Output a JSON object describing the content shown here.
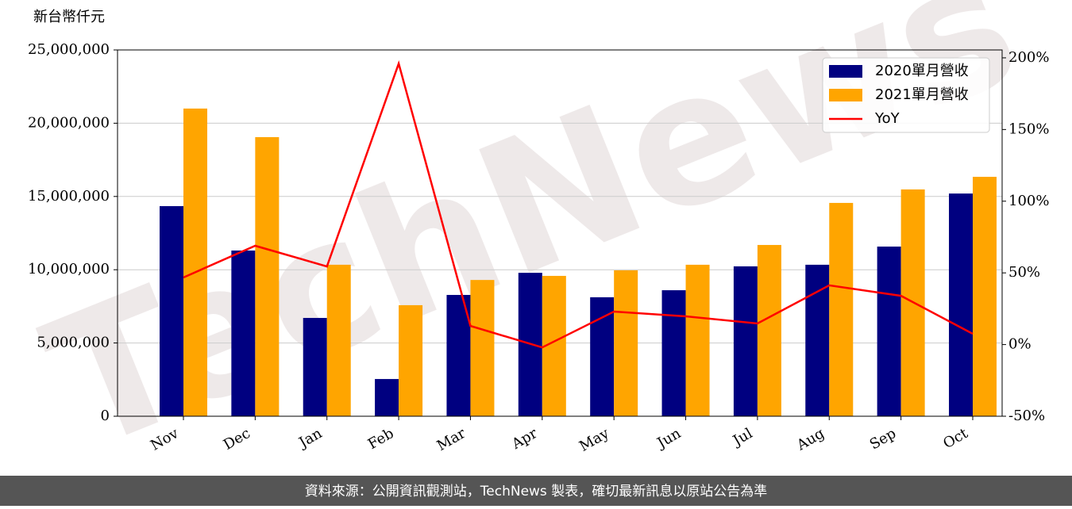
{
  "chart_data": {
    "type": "bar_line",
    "y_axis_label": "新台幣仟元",
    "watermark": "TechNews",
    "categories": [
      "Nov",
      "Dec",
      "Jan",
      "Feb",
      "Mar",
      "Apr",
      "May",
      "Jun",
      "Jul",
      "Aug",
      "Sep",
      "Oct"
    ],
    "series": [
      {
        "name": "2020單月營收",
        "color": "#000080",
        "kind": "bar",
        "values": [
          14340000,
          11310000,
          6710000,
          2540000,
          8280000,
          9790000,
          8120000,
          8600000,
          10230000,
          10340000,
          11580000,
          15200000
        ]
      },
      {
        "name": "2021單月營收",
        "color": "#ffa500",
        "kind": "bar",
        "values": [
          21000000,
          19050000,
          10340000,
          7580000,
          9300000,
          9580000,
          9960000,
          10340000,
          11690000,
          14560000,
          15480000,
          16340000
        ]
      },
      {
        "name": "YoY",
        "color": "#ff0000",
        "kind": "line",
        "axis": "y2",
        "values": [
          46.8,
          68.9,
          54.5,
          196,
          13,
          -2,
          23,
          19.7,
          14.7,
          41.3,
          34,
          7.5
        ]
      }
    ],
    "ylim": [
      0,
      25000000
    ],
    "yticks": [
      0,
      {
        "value": 5000000,
        "label": "5,000,000"
      },
      {
        "value": 10000000,
        "label": "10,000,000"
      },
      {
        "value": 15000000,
        "label": "15,000,000"
      },
      {
        "value": 20000000,
        "label": "20,000,000"
      },
      {
        "value": 25000000,
        "label": "25,000,000"
      }
    ],
    "y2lim": [
      -50,
      205.5
    ],
    "y2ticks": [
      {
        "value": -50,
        "label": "-50%"
      },
      {
        "value": 0,
        "label": "0%"
      },
      {
        "value": 50,
        "label": "50%"
      },
      {
        "value": 100,
        "label": "100%"
      },
      {
        "value": 150,
        "label": "150%"
      },
      {
        "value": 200,
        "label": "200%"
      }
    ],
    "grid": true,
    "legend": "upper right"
  },
  "footer": "資料來源：公開資訊觀測站，TechNews 製表，確切最新訊息以原站公告為準"
}
